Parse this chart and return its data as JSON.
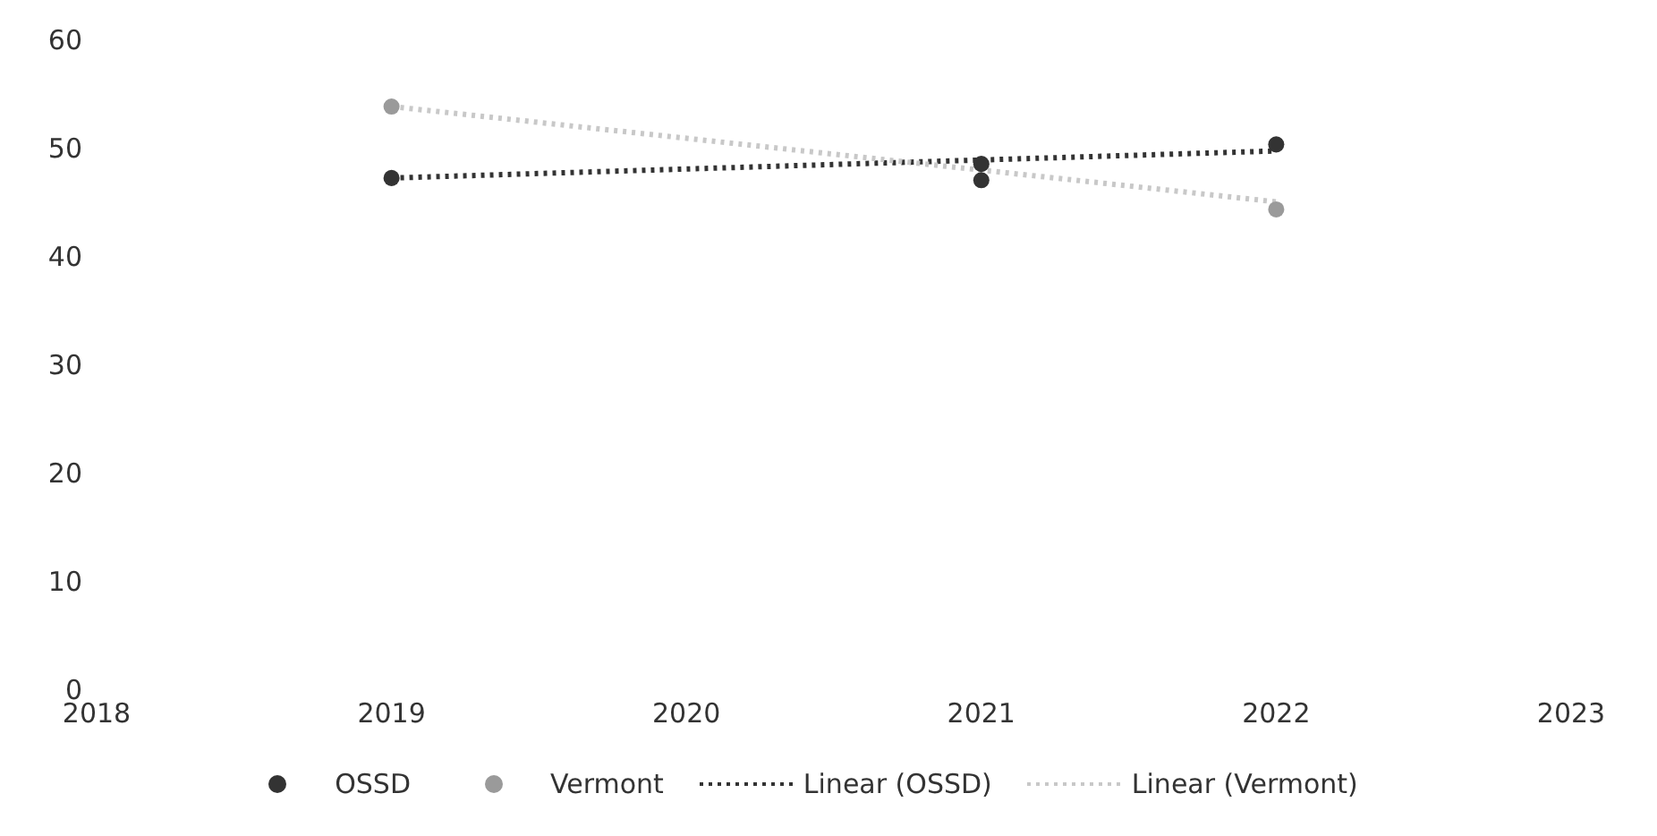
{
  "chart_data": {
    "type": "scatter",
    "xlim": [
      2018,
      2023
    ],
    "xticks": [
      2018,
      2019,
      2020,
      2021,
      2022,
      2023
    ],
    "ylim": [
      0,
      60
    ],
    "yticks": [
      0,
      10,
      20,
      30,
      40,
      50,
      60
    ],
    "grid": false,
    "legend": "bottom",
    "marker": "circle",
    "series": [
      {
        "name": "OSSD",
        "color": "#333333",
        "x": [
          2019,
          2021,
          2021,
          2022
        ],
        "values": [
          47.2,
          48.5,
          47,
          50.3
        ]
      },
      {
        "name": "Vermont",
        "color": "#9a9a9a",
        "x": [
          2019,
          2021,
          2022
        ],
        "values": [
          53.8,
          null,
          44.3
        ]
      },
      {
        "name": "Linear (OSSD)",
        "type": "line",
        "line_style": "dotted",
        "marker": "none",
        "color": "#333333",
        "x": [
          2019,
          2022
        ],
        "values": [
          47.2,
          49.7
        ]
      },
      {
        "name": "Linear (Vermont)",
        "type": "line",
        "line_style": "dotted",
        "marker": "none",
        "color": "#c8c8c8",
        "x": [
          2019,
          2022
        ],
        "values": [
          53.8,
          45
        ]
      }
    ]
  }
}
